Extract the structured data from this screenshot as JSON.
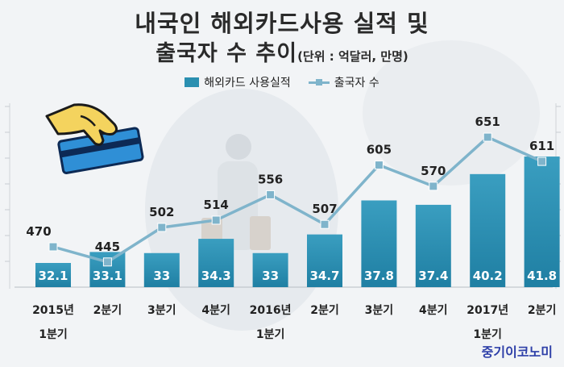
{
  "header": {
    "title_line1": "내국인 해외카드사용 실적 및",
    "title_line2": "출국자 수 추이",
    "unit": "(단위 : 억달러, 만명)"
  },
  "legend": {
    "bar_label": "해외카드 사용실적",
    "line_label": "출국자 수"
  },
  "brand": "중기이코노미",
  "chart_data": {
    "type": "bar",
    "categories": [
      "2015년 1분기",
      "2분기",
      "3분기",
      "4분기",
      "2016년 1분기",
      "2분기",
      "3분기",
      "4분기",
      "2017년 1분기",
      "2분기"
    ],
    "category_lines": [
      [
        "2015년",
        "1분기"
      ],
      [
        "2분기"
      ],
      [
        "3분기"
      ],
      [
        "4분기"
      ],
      [
        "2016년",
        "1분기"
      ],
      [
        "2분기"
      ],
      [
        "3분기"
      ],
      [
        "4분기"
      ],
      [
        "2017년",
        "1분기"
      ],
      [
        "2분기"
      ]
    ],
    "series": [
      {
        "name": "해외카드 사용실적",
        "type": "bar",
        "values": [
          32.1,
          33.1,
          33,
          34.3,
          33,
          34.7,
          37.8,
          37.4,
          40.2,
          41.8
        ],
        "color": "#2a8fb0"
      },
      {
        "name": "출국자 수",
        "type": "line",
        "values": [
          470,
          445,
          502,
          514,
          556,
          507,
          605,
          570,
          651,
          611
        ],
        "color": "#7fb4cb"
      }
    ],
    "bar_labels": [
      "32.1",
      "33.1",
      "33",
      "34.3",
      "33",
      "34.7",
      "37.8",
      "37.4",
      "40.2",
      "41.8"
    ],
    "line_labels": [
      "470",
      "445",
      "502",
      "514",
      "556",
      "507",
      "605",
      "570",
      "651",
      "611"
    ],
    "title": "내국인 해외카드사용 실적 및 출국자 수 추이",
    "grid": false,
    "legend_position": "top-center"
  }
}
